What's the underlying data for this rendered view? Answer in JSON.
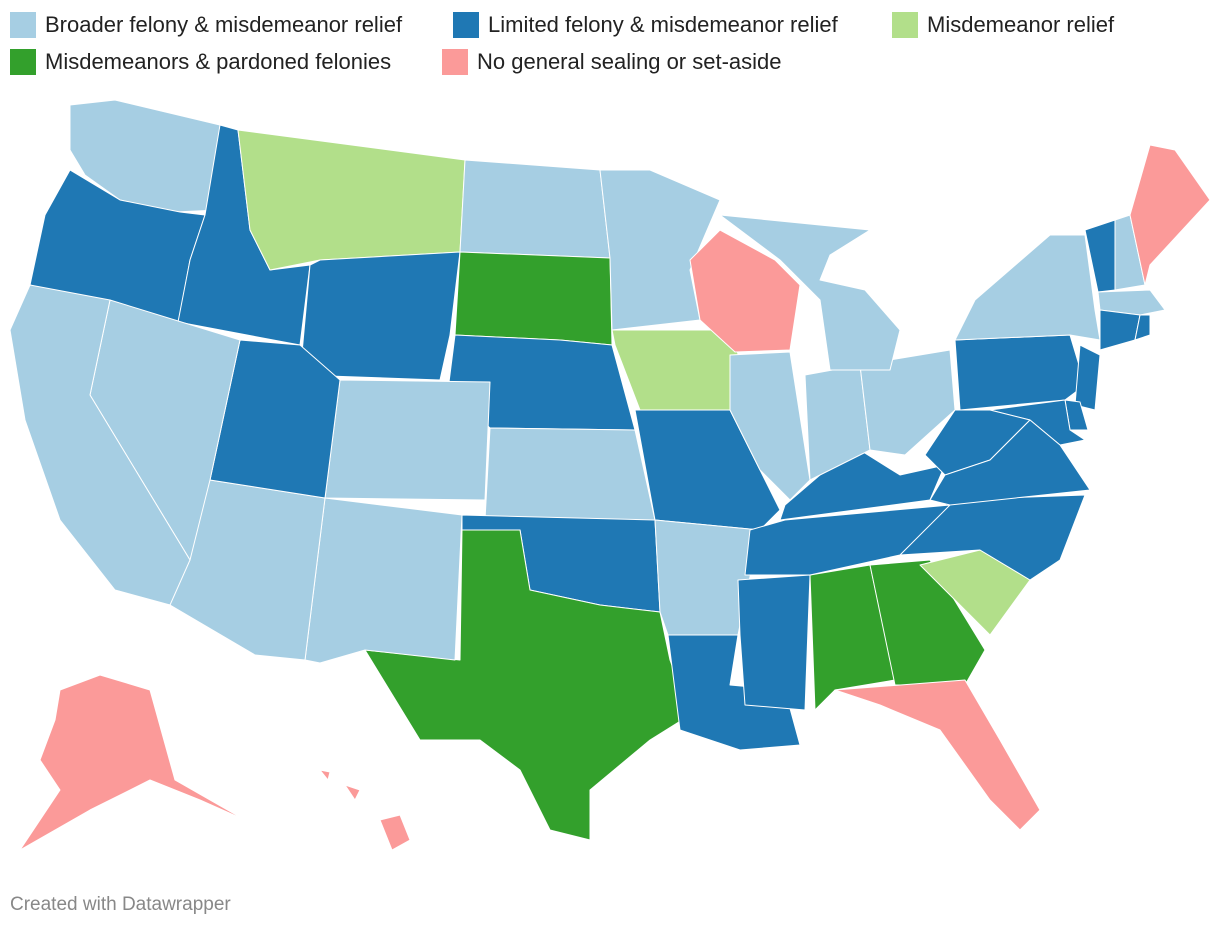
{
  "legend": [
    {
      "label": "Broader felony & misdemeanor relief",
      "color": "#a6cee3"
    },
    {
      "label": "Limited felony & misdemeanor relief",
      "color": "#1f78b4"
    },
    {
      "label": "Misdemeanor relief",
      "color": "#b2df8a"
    },
    {
      "label": "Misdemeanors & pardoned felonies",
      "color": "#33a02c"
    },
    {
      "label": "No general sealing or set-aside",
      "color": "#fb9a99"
    }
  ],
  "footer": "Created with Datawrapper"
}
